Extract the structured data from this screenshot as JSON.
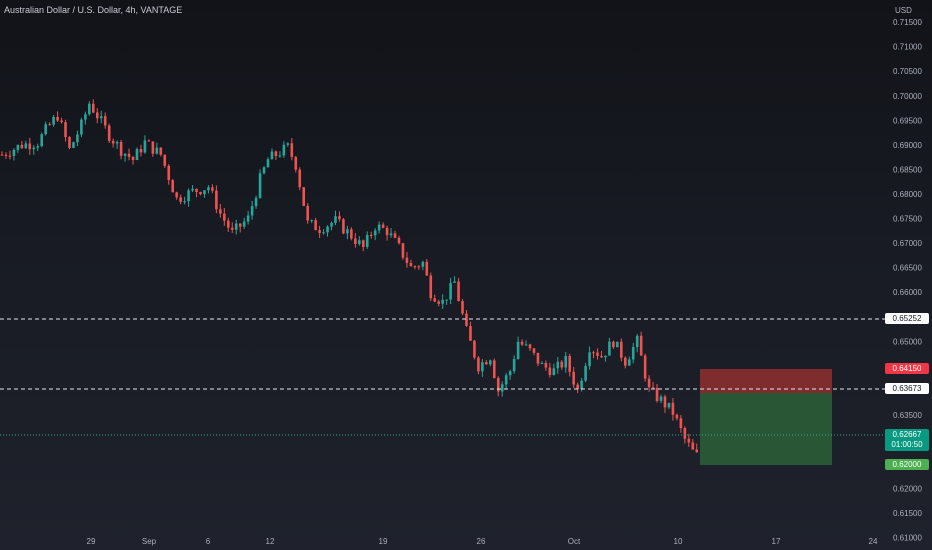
{
  "header": {
    "title": "Australian Dollar / U.S. Dollar, 4h, VANTAGE",
    "currency": "USD"
  },
  "price_axis": {
    "ticks": [
      "0.71500",
      "0.71000",
      "0.70500",
      "0.70000",
      "0.69500",
      "0.69000",
      "0.68500",
      "0.68000",
      "0.67500",
      "0.67000",
      "0.66500",
      "0.66000",
      "0.65500",
      "0.65000",
      "0.64500",
      "0.64000",
      "0.63500",
      "0.63000",
      "0.62500",
      "0.62000",
      "0.61500",
      "0.61000"
    ]
  },
  "time_axis": {
    "labels": [
      "29",
      "Sep",
      "6",
      "12",
      "19",
      "26",
      "Oct",
      "10",
      "17",
      "24"
    ]
  },
  "levels": {
    "resistance": "0.65252",
    "entry": "0.63673",
    "stop": "0.64150",
    "target": "0.62000",
    "current": {
      "price": "0.62667",
      "countdown": "01:00:50"
    }
  },
  "colors": {
    "up": "#26a69a",
    "down": "#ef5350",
    "stop_zone": "#8f2f2f",
    "target_zone": "#2b5c35",
    "current_tag": "#089981",
    "target_tag": "#4caf50",
    "stop_tag": "#f23645"
  },
  "chart_data": {
    "type": "candlestick",
    "ylim": [
      0.6075,
      0.7195
    ],
    "close_path": [
      [
        0,
        0.688
      ],
      [
        5,
        0.69
      ],
      [
        9,
        0.6905
      ],
      [
        11,
        0.693
      ],
      [
        14,
        0.696
      ],
      [
        17,
        0.689
      ],
      [
        20,
        0.694
      ],
      [
        22,
        0.6985
      ],
      [
        24,
        0.696
      ],
      [
        27,
        0.692
      ],
      [
        30,
        0.689
      ],
      [
        33,
        0.687
      ],
      [
        36,
        0.6905
      ],
      [
        40,
        0.688
      ],
      [
        44,
        0.679
      ],
      [
        48,
        0.6805
      ],
      [
        52,
        0.6815
      ],
      [
        55,
        0.676
      ],
      [
        58,
        0.672
      ],
      [
        62,
        0.675
      ],
      [
        65,
        0.683
      ],
      [
        67,
        0.687
      ],
      [
        69,
        0.688
      ],
      [
        72,
        0.6895
      ],
      [
        74,
        0.686
      ],
      [
        77,
        0.674
      ],
      [
        80,
        0.673
      ],
      [
        84,
        0.6745
      ],
      [
        88,
        0.6715
      ],
      [
        91,
        0.669
      ],
      [
        94,
        0.6735
      ],
      [
        97,
        0.6725
      ],
      [
        100,
        0.669
      ],
      [
        103,
        0.665
      ],
      [
        106,
        0.666
      ],
      [
        108,
        0.66
      ],
      [
        111,
        0.658
      ],
      [
        114,
        0.662
      ],
      [
        117,
        0.652
      ],
      [
        120,
        0.645
      ],
      [
        123,
        0.647
      ],
      [
        125,
        0.64
      ],
      [
        128,
        0.644
      ],
      [
        130,
        0.65
      ],
      [
        133,
        0.648
      ],
      [
        136,
        0.645
      ],
      [
        139,
        0.644
      ],
      [
        142,
        0.646
      ],
      [
        145,
        0.64
      ],
      [
        148,
        0.649
      ],
      [
        151,
        0.647
      ],
      [
        154,
        0.65
      ],
      [
        157,
        0.646
      ],
      [
        160,
        0.65
      ],
      [
        163,
        0.64
      ],
      [
        166,
        0.638
      ],
      [
        169,
        0.6355
      ],
      [
        172,
        0.63
      ],
      [
        174,
        0.6275
      ],
      [
        175,
        0.6267
      ]
    ]
  }
}
